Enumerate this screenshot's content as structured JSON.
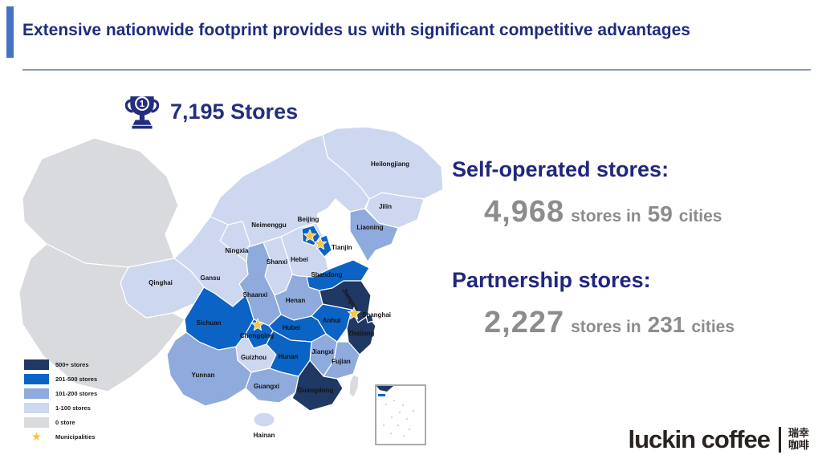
{
  "slide": {
    "title": "Extensive nationwide footprint provides us with significant competitive advantages",
    "accent_color": "#4472C4",
    "title_color": "#1F2C7E"
  },
  "map": {
    "total_rank": "1",
    "total_label": "7,195 Stores"
  },
  "chart_data": {
    "type": "choropleth",
    "title": "7,195 Stores",
    "region": "China provinces",
    "legend_position": "bottom-left",
    "buckets": [
      {
        "key": "500+",
        "label": "500+ stores",
        "color": "#1F3864",
        "provinces": [
          "Jiangsu",
          "Zhejiang",
          "Guangdong",
          "Shanghai"
        ]
      },
      {
        "key": "201-500",
        "label": "201-500 stores",
        "color": "#0B63C5",
        "provinces": [
          "Beijing",
          "Tianjin",
          "Shandong",
          "Anhui",
          "Hubei",
          "Hunan",
          "Sichuan",
          "Chongqing"
        ]
      },
      {
        "key": "101-200",
        "label": "101-200 stores",
        "color": "#8FAADC",
        "provinces": [
          "Liaoning",
          "Shaanxi",
          "Henan",
          "Jiangxi",
          "Fujian",
          "Yunnan",
          "Guangxi"
        ]
      },
      {
        "key": "1-100",
        "label": "1-100 stores",
        "color": "#CDD7EF",
        "provinces": [
          "Heilongjiang",
          "Jilin",
          "Neimenggu",
          "Hebei",
          "Shanxi",
          "Ningxia",
          "Gansu",
          "Qinghai",
          "Guizhou",
          "Hainan"
        ]
      },
      {
        "key": "0",
        "label": "0 store",
        "color": "#D8DADD",
        "provinces": [
          "Xinjiang",
          "Xizang",
          "Taiwan"
        ]
      }
    ],
    "star": {
      "label": "Municipalities",
      "color": "#F5C644"
    },
    "municipalities": [
      "Beijing",
      "Tianjin",
      "Shanghai",
      "Chongqing"
    ]
  },
  "stats": [
    {
      "heading": "Self-operated stores:",
      "value": "4,968",
      "mid": "stores in",
      "count": "59",
      "suffix": "cities"
    },
    {
      "heading": "Partnership stores:",
      "value": "2,227",
      "mid": "stores in",
      "count": "231",
      "suffix": "cities"
    }
  ],
  "logo": {
    "name": "luckin coffee",
    "cn_line1": "瑞幸",
    "cn_line2": "咖啡"
  }
}
